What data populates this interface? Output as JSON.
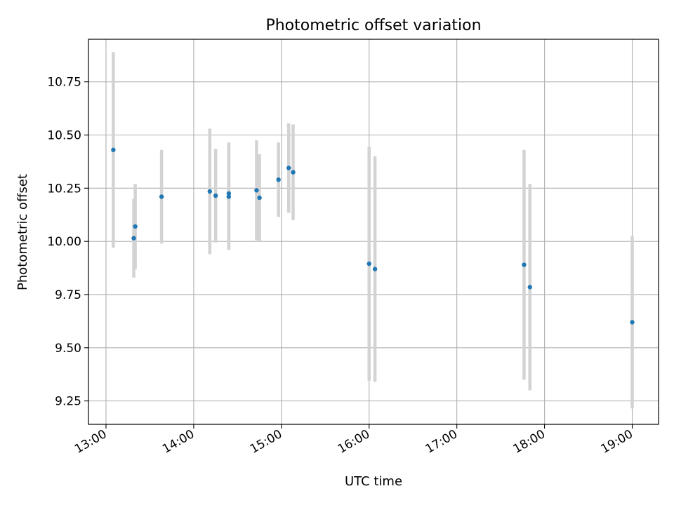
{
  "chart_data": {
    "type": "scatter",
    "title": "Photometric offset variation",
    "xlabel": "UTC time",
    "ylabel": "Photometric offset",
    "grid": true,
    "xlim": [
      "12:48",
      "19:18"
    ],
    "ylim": [
      9.14,
      10.95
    ],
    "x_ticks": [
      "13:00",
      "14:00",
      "15:00",
      "16:00",
      "17:00",
      "18:00",
      "19:00"
    ],
    "y_ticks": [
      "9.25",
      "9.50",
      "9.75",
      "10.00",
      "10.25",
      "10.50",
      "10.75"
    ],
    "series": [
      {
        "marker_color": "#1f77b4",
        "errorbar_color": "#d3d3d3",
        "points": [
          {
            "x": "13:05",
            "y": 10.43,
            "err": 0.46
          },
          {
            "x": "13:19",
            "y": 10.015,
            "err": 0.185
          },
          {
            "x": "13:20",
            "y": 10.07,
            "err": 0.2
          },
          {
            "x": "13:38",
            "y": 10.21,
            "err": 0.22
          },
          {
            "x": "14:11",
            "y": 10.235,
            "err": 0.295
          },
          {
            "x": "14:15",
            "y": 10.215,
            "err": 0.22
          },
          {
            "x": "14:24",
            "y": 10.225,
            "err": 0.24
          },
          {
            "x": "14:24",
            "y": 10.21,
            "err": 0.25
          },
          {
            "x": "14:43",
            "y": 10.24,
            "err": 0.235
          },
          {
            "x": "14:45",
            "y": 10.205,
            "err": 0.205
          },
          {
            "x": "14:58",
            "y": 10.29,
            "err": 0.175
          },
          {
            "x": "15:05",
            "y": 10.345,
            "err": 0.21
          },
          {
            "x": "15:08",
            "y": 10.325,
            "err": 0.225
          },
          {
            "x": "16:00",
            "y": 9.895,
            "err": 0.55
          },
          {
            "x": "16:04",
            "y": 9.87,
            "err": 0.53
          },
          {
            "x": "17:46",
            "y": 9.89,
            "err": 0.54
          },
          {
            "x": "17:50",
            "y": 9.785,
            "err": 0.485
          },
          {
            "x": "19:00",
            "y": 9.62,
            "err": 0.405
          }
        ]
      }
    ]
  }
}
